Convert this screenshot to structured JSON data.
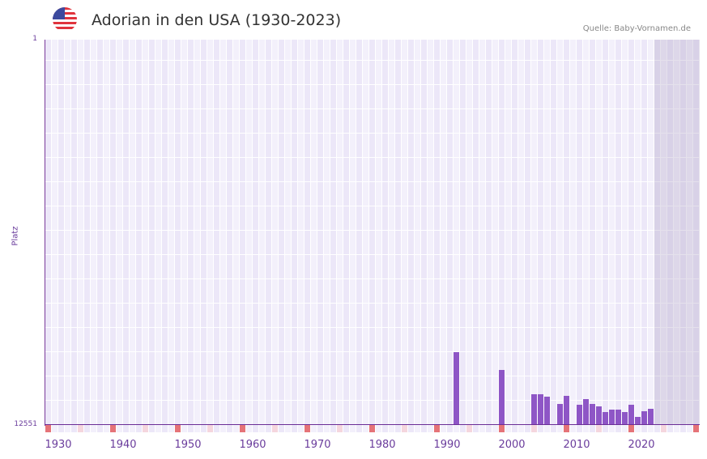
{
  "header": {
    "flag_icon": "us-flag-icon",
    "title": "Adorian in den USA (1930-2023)",
    "source": "Quelle: Baby-Vornamen.de"
  },
  "colors": {
    "bar": "#8e56c6",
    "axis": "#6a2c96",
    "decade_marker": "#e57378",
    "half_decade_marker": "#f5d6de",
    "grid_cell_a": "#ece7f8",
    "grid_cell_b": "#f3f0fb",
    "shade": "#e0dbe9"
  },
  "chart_data": {
    "type": "bar",
    "title": "Adorian in den USA (1930-2023)",
    "xlabel": "",
    "ylabel": "Platz",
    "y_inverted": true,
    "ylim": [
      1,
      12551
    ],
    "y_ticks": [
      "1",
      "12551"
    ],
    "x_range": [
      1928,
      2028
    ],
    "x_ticks": [
      "1930",
      "1940",
      "1950",
      "1960",
      "1970",
      "1980",
      "1990",
      "2000",
      "2010",
      "2020"
    ],
    "shaded_from_year": 2022,
    "grid": true,
    "legend": null,
    "x": [
      1991,
      1998,
      2003,
      2004,
      2005,
      2007,
      2008,
      2010,
      2011,
      2012,
      2013,
      2014,
      2015,
      2016,
      2017,
      2018,
      2019,
      2020,
      2021
    ],
    "values": [
      10178,
      10758,
      11549,
      11549,
      11628,
      11866,
      11602,
      11892,
      11707,
      11866,
      11945,
      12129,
      12050,
      12050,
      12129,
      11892,
      12287,
      12103,
      12024
    ]
  }
}
